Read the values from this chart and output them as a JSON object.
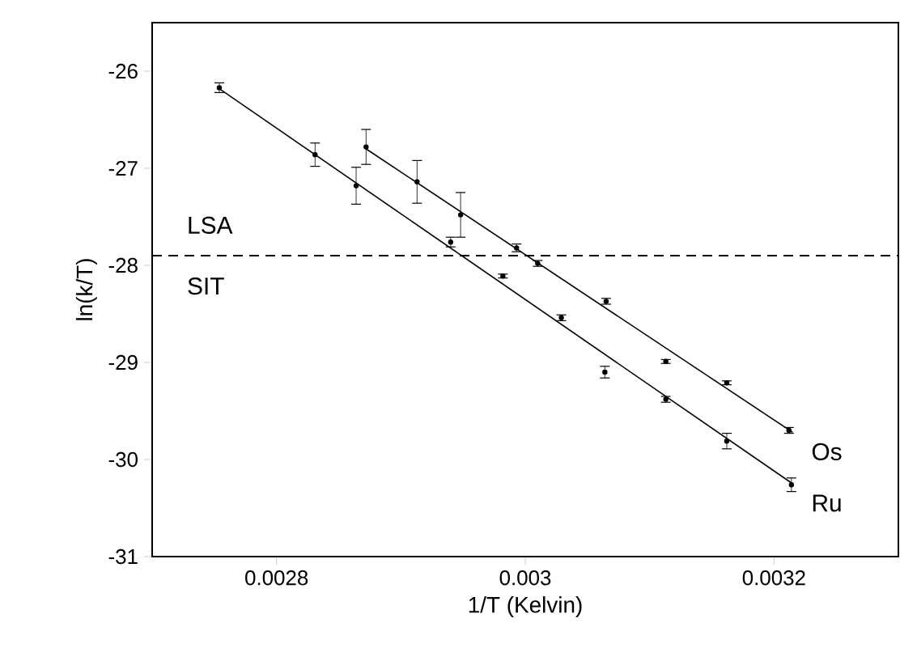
{
  "chart_data": {
    "type": "scatter",
    "xlabel": "1/T (Kelvin)",
    "ylabel": "ln(k/T)",
    "xlim": [
      0.0027,
      0.0033
    ],
    "ylim": [
      -31,
      -25.5
    ],
    "xticks": [
      0.0028,
      0.003,
      0.0032
    ],
    "yticks": [
      -31,
      -30,
      -29,
      -28,
      -27,
      -26
    ],
    "marker": "circle",
    "grid": false,
    "annotations": [
      "LSA",
      "SIT"
    ],
    "ref_lines": [
      {
        "axis": "y",
        "value": -27.9,
        "line_style": "dashed",
        "color": "#000000"
      }
    ],
    "series": [
      {
        "color": "#000000",
        "x": [
          0.002872,
          0.002913,
          0.002948,
          0.002993,
          0.00301,
          0.003065,
          0.003113,
          0.003162,
          0.003212
        ],
        "values": [
          -26.78,
          -27.14,
          -27.48,
          -27.82,
          -27.98,
          -28.37,
          -28.99,
          -29.21,
          -29.7
        ],
        "errors": [
          0.18,
          0.22,
          0.23,
          0.04,
          0.03,
          0.03,
          0.02,
          0.02,
          0.03
        ]
      },
      {
        "type": "line",
        "name": "Os",
        "color": "#000000",
        "marker": "none",
        "x": [
          0.002872,
          0.003215
        ],
        "values": [
          -26.8,
          -29.72
        ]
      },
      {
        "color": "#000000",
        "x": [
          0.002754,
          0.002831,
          0.002864,
          0.00294,
          0.002982,
          0.003029,
          0.003064,
          0.003113,
          0.003162,
          0.003214
        ],
        "values": [
          -26.17,
          -26.86,
          -27.18,
          -27.76,
          -28.11,
          -28.54,
          -29.1,
          -29.38,
          -29.81,
          -30.26
        ],
        "errors": [
          0.05,
          0.12,
          0.19,
          0.05,
          0.02,
          0.03,
          0.06,
          0.03,
          0.08,
          0.07
        ]
      },
      {
        "type": "line",
        "name": "Ru",
        "color": "#000000",
        "marker": "none",
        "x": [
          0.002754,
          0.003215
        ],
        "values": [
          -26.18,
          -30.25
        ]
      }
    ]
  }
}
